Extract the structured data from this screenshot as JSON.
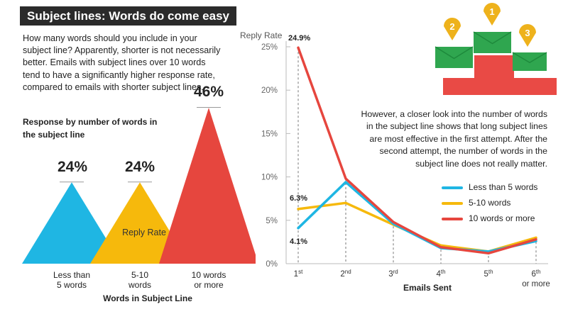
{
  "title": "Subject lines: Words do come easy",
  "intro": "How many words should you include in your subject line? Apparently, shorter is not necessarily better. Emails with subject lines over 10 words tend to have a significantly higher response rate, compared to emails with shorter subject lines.",
  "note": "However, a closer look into the number of words in the subject line shows that long subject lines are most effective in the first attempt. After the second attempt, the number of words in the subject line does not really matter.",
  "colors": {
    "blue": "#1fb6e3",
    "yellow": "#f6b90c",
    "red": "#e6463e",
    "green": "#2fa64f",
    "podium": "#e94a45",
    "pin": "#eeb21c"
  },
  "podium": {
    "pins": [
      "1",
      "2",
      "3"
    ]
  },
  "chart_data": [
    {
      "type": "bar",
      "title": "Response by number of words in the subject line",
      "xlabel": "Words in Subject Line",
      "ylabel": "Reply Rate",
      "categories": [
        "Less than 5 words",
        "5-10 words",
        "10 words or more"
      ],
      "category_lines": [
        [
          "Less than",
          "5 words"
        ],
        [
          "5-10",
          "words"
        ],
        [
          "10 words",
          "or more"
        ]
      ],
      "values": [
        24,
        24,
        46
      ],
      "value_labels": [
        "24%",
        "24%",
        "46%"
      ],
      "colors": [
        "#1fb6e3",
        "#f6b90c",
        "#e6463e"
      ]
    },
    {
      "type": "line",
      "xlabel": "Emails Sent",
      "ylabel": "Reply Rate",
      "x": [
        "1st",
        "2nd",
        "3rd",
        "4th",
        "5th",
        "6th"
      ],
      "x_ticks": [
        [
          "1",
          "st"
        ],
        [
          "2",
          "nd"
        ],
        [
          "3",
          "rd"
        ],
        [
          "4",
          "th"
        ],
        [
          "5",
          "th"
        ],
        [
          "6",
          "th"
        ]
      ],
      "x_last_extra": "or more",
      "ylim": [
        0,
        25
      ],
      "yticks": [
        0,
        5,
        10,
        15,
        20,
        25
      ],
      "ytick_labels": [
        "0%",
        "5%",
        "10%",
        "15%",
        "20%",
        "25%"
      ],
      "series": [
        {
          "name": "Less than 5 words",
          "color": "#1fb6e3",
          "values": [
            4.1,
            9.4,
            4.6,
            1.8,
            1.4,
            2.6
          ]
        },
        {
          "name": "5-10 words",
          "color": "#f6b90c",
          "values": [
            6.3,
            7.0,
            4.5,
            2.1,
            1.4,
            3.0
          ]
        },
        {
          "name": "10 words or more",
          "color": "#e6463e",
          "values": [
            24.9,
            9.8,
            4.8,
            1.9,
            1.2,
            2.8
          ]
        }
      ],
      "annotations": [
        {
          "label": "24.9%",
          "series": 2,
          "index": 0
        },
        {
          "label": "6.3%",
          "series": 1,
          "index": 0
        },
        {
          "label": "4.1%",
          "series": 0,
          "index": 0
        }
      ],
      "grid": "vertical dashed"
    }
  ]
}
